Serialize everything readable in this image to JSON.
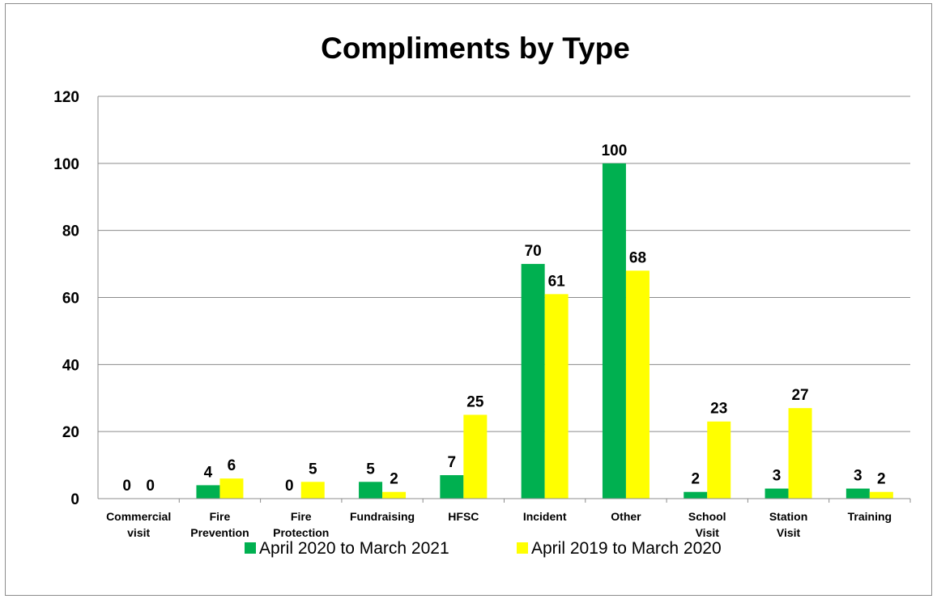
{
  "chart_data": {
    "type": "bar",
    "title": "Compliments by Type",
    "xlabel": "",
    "ylabel": "",
    "categories": [
      [
        "Commercial",
        "visit"
      ],
      [
        "Fire",
        "Prevention"
      ],
      [
        "Fire",
        "Protection"
      ],
      [
        "Fundraising"
      ],
      [
        "HFSC"
      ],
      [
        "Incident"
      ],
      [
        "Other"
      ],
      [
        "School",
        "Visit"
      ],
      [
        "Station",
        "Visit"
      ],
      [
        "Training"
      ]
    ],
    "series": [
      {
        "name": "April 2020 to March 2021",
        "color": "#00b050",
        "values": [
          0,
          4,
          0,
          5,
          7,
          70,
          100,
          2,
          3,
          3
        ]
      },
      {
        "name": "April 2019 to March 2020",
        "color": "#ffff00",
        "values": [
          0,
          6,
          5,
          2,
          25,
          61,
          68,
          23,
          27,
          2
        ]
      }
    ],
    "ylim": [
      0,
      120
    ],
    "yticks": [
      0,
      20,
      40,
      60,
      80,
      100,
      120
    ],
    "grid": true,
    "legend_position": "bottom",
    "data_labels": true
  }
}
